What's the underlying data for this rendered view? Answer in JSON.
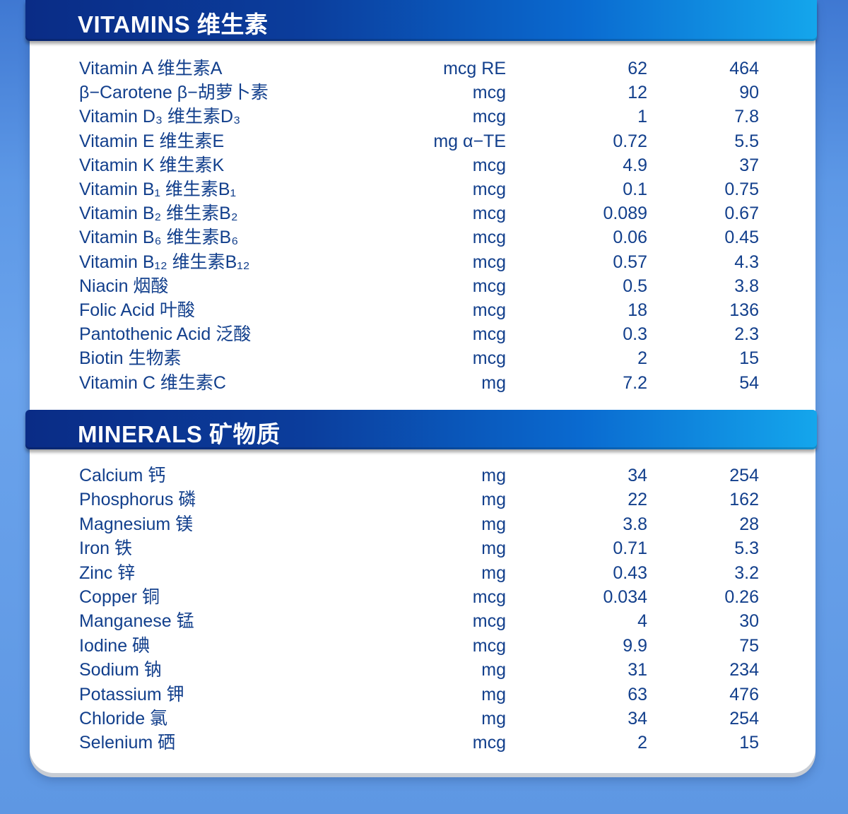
{
  "vitamins": {
    "title": "VITAMINS 维生素",
    "rows": [
      {
        "name": "Vitamin A  维生素A",
        "unit": "mcg RE",
        "v1": "62",
        "v2": "464"
      },
      {
        "name": "β−Carotene  β−胡萝卜素",
        "unit": "mcg",
        "v1": "12",
        "v2": "90"
      },
      {
        "name": "Vitamin D₃  维生素D₃",
        "unit": "mcg",
        "v1": "1",
        "v2": "7.8"
      },
      {
        "name": "Vitamin E  维生素E",
        "unit": "mg α−TE",
        "v1": "0.72",
        "v2": "5.5"
      },
      {
        "name": "Vitamin K  维生素K",
        "unit": "mcg",
        "v1": "4.9",
        "v2": "37"
      },
      {
        "name": "Vitamin B₁  维生素B₁",
        "unit": "mcg",
        "v1": "0.1",
        "v2": "0.75"
      },
      {
        "name": "Vitamin B₂  维生素B₂",
        "unit": "mcg",
        "v1": "0.089",
        "v2": "0.67"
      },
      {
        "name": "Vitamin B₆  维生素B₆",
        "unit": "mcg",
        "v1": "0.06",
        "v2": "0.45"
      },
      {
        "name": "Vitamin B₁₂  维生素B₁₂",
        "unit": "mcg",
        "v1": "0.57",
        "v2": "4.3"
      },
      {
        "name": "Niacin  烟酸",
        "unit": "mcg",
        "v1": "0.5",
        "v2": "3.8"
      },
      {
        "name": "Folic Acid  叶酸",
        "unit": "mcg",
        "v1": "18",
        "v2": "136"
      },
      {
        "name": "Pantothenic Acid  泛酸",
        "unit": "mcg",
        "v1": "0.3",
        "v2": "2.3"
      },
      {
        "name": "Biotin  生物素",
        "unit": "mcg",
        "v1": "2",
        "v2": "15"
      },
      {
        "name": "Vitamin C  维生素C",
        "unit": "mg",
        "v1": "7.2",
        "v2": "54"
      }
    ]
  },
  "minerals": {
    "title": "MINERALS 矿物质",
    "rows": [
      {
        "name": "Calcium  钙",
        "unit": "mg",
        "v1": "34",
        "v2": "254"
      },
      {
        "name": "Phosphorus  磷",
        "unit": "mg",
        "v1": "22",
        "v2": "162"
      },
      {
        "name": "Magnesium  镁",
        "unit": "mg",
        "v1": "3.8",
        "v2": "28"
      },
      {
        "name": "Iron  铁",
        "unit": "mg",
        "v1": "0.71",
        "v2": "5.3"
      },
      {
        "name": "Zinc  锌",
        "unit": "mg",
        "v1": "0.43",
        "v2": "3.2"
      },
      {
        "name": "Copper  铜",
        "unit": "mcg",
        "v1": "0.034",
        "v2": "0.26"
      },
      {
        "name": "Manganese  锰",
        "unit": "mcg",
        "v1": "4",
        "v2": "30"
      },
      {
        "name": "Iodine  碘",
        "unit": "mcg",
        "v1": "9.9",
        "v2": "75"
      },
      {
        "name": "Sodium  钠",
        "unit": "mg",
        "v1": "31",
        "v2": "234"
      },
      {
        "name": "Potassium  钾",
        "unit": "mg",
        "v1": "63",
        "v2": "476"
      },
      {
        "name": "Chloride  氯",
        "unit": "mg",
        "v1": "34",
        "v2": "254"
      },
      {
        "name": "Selenium  硒",
        "unit": "mcg",
        "v1": "2",
        "v2": "15"
      }
    ]
  }
}
